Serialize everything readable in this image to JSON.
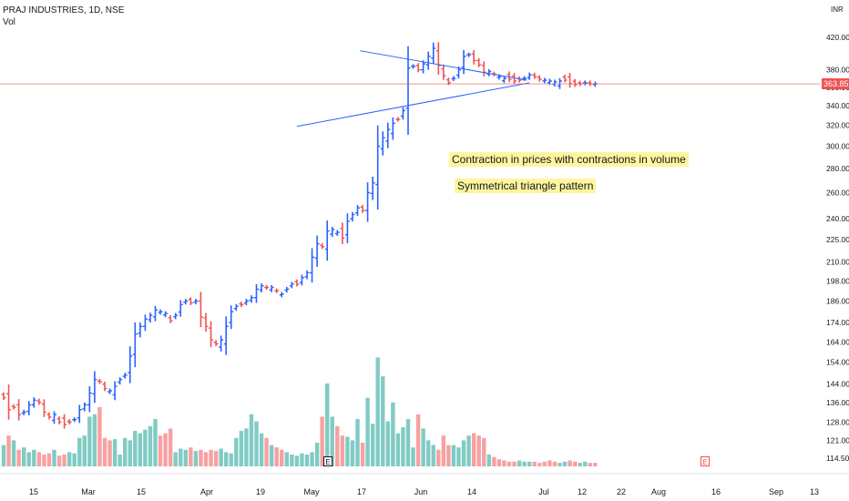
{
  "header": {
    "symbol_line": "PRAJ INDUSTRIES, 1D, NSE",
    "volume_label": "Vol",
    "currency": "INR"
  },
  "annotations": {
    "contraction": "Contraction in prices with contractions in volume",
    "triangle": "Symmetrical triangle pattern"
  },
  "badges": {
    "event_left": "E",
    "event_right": "E"
  },
  "last_price_label": "363.85",
  "colors": {
    "up": "#2962ff",
    "down": "#ef5350",
    "vol_up": "#80cbc4",
    "vol_down": "#f7a1a1",
    "trendline": "#2962ff",
    "callout_bg": "#fff59d"
  },
  "chart_data": {
    "type": "ohlc_bar",
    "x_tick_labels": [
      "15",
      "Mar",
      "15",
      "Apr",
      "19",
      "May",
      "17",
      "Jun",
      "14",
      "Jul",
      "12",
      "22",
      "Aug",
      "16",
      "Sep",
      "13"
    ],
    "y_tick_labels": [
      "420.00",
      "380.00",
      "360.00",
      "340.00",
      "320.00",
      "300.00",
      "280.00",
      "260.00",
      "240.00",
      "225.00",
      "210.00",
      "198.00",
      "186.00",
      "174.00",
      "164.00",
      "154.00",
      "144.00",
      "136.00",
      "128.00",
      "121.00",
      "114.50"
    ],
    "y_scale": "log",
    "y_range": [
      110,
      440
    ],
    "last_price": 363.85,
    "closes": [
      138,
      133,
      134,
      131,
      132,
      135,
      137,
      136,
      132,
      130,
      131,
      128,
      127,
      128,
      129,
      133,
      135,
      140,
      146,
      145,
      142,
      141,
      143,
      146,
      148,
      157,
      168,
      172,
      176,
      178,
      181,
      180,
      179,
      175,
      178,
      184,
      186,
      185,
      186,
      177,
      172,
      165,
      163,
      165,
      172,
      180,
      183,
      184,
      186,
      188,
      193,
      195,
      194,
      194,
      192,
      190,
      193,
      196,
      196,
      200,
      203,
      213,
      222,
      220,
      231,
      232,
      230,
      226,
      238,
      243,
      248,
      246,
      260,
      268,
      300,
      308,
      316,
      322,
      326,
      335,
      382,
      384,
      380,
      387,
      396,
      406,
      385,
      373,
      365,
      370,
      380,
      396,
      398,
      391,
      386,
      377,
      378,
      375,
      372,
      370,
      369,
      367,
      368,
      370,
      374,
      372,
      369,
      368,
      367,
      366,
      367,
      368,
      364,
      363,
      364,
      365,
      364,
      363.85
    ],
    "vol_scale_note": "volume in relative units",
    "volumes": [
      18,
      26,
      22,
      14,
      16,
      12,
      14,
      12,
      10,
      11,
      14,
      9,
      10,
      12,
      11,
      24,
      26,
      42,
      44,
      50,
      24,
      22,
      23,
      10,
      24,
      22,
      30,
      28,
      31,
      34,
      40,
      26,
      28,
      32,
      12,
      15,
      14,
      16,
      13,
      14,
      12,
      14,
      13,
      15,
      12,
      11,
      24,
      30,
      32,
      44,
      38,
      28,
      24,
      18,
      16,
      14,
      12,
      10,
      9,
      11,
      10,
      12,
      20,
      42,
      70,
      42,
      34,
      26,
      25,
      22,
      40,
      20,
      58,
      36,
      92,
      76,
      38,
      54,
      28,
      33,
      40,
      16,
      44,
      32,
      22,
      18,
      14,
      26,
      18,
      18,
      16,
      22,
      26,
      28,
      26,
      24,
      10,
      8,
      6,
      5,
      4,
      4,
      5,
      4,
      4,
      4,
      3,
      4,
      5,
      4,
      3,
      4,
      5,
      4,
      3,
      4,
      3,
      3
    ],
    "vol_max": 100,
    "trendlines": [
      {
        "from": [
          70.5,
          403
        ],
        "to": [
          103.5,
          368
        ]
      },
      {
        "from": [
          58,
          319
        ],
        "to": [
          104,
          365
        ]
      }
    ],
    "grid": false,
    "legend": "top-left"
  }
}
